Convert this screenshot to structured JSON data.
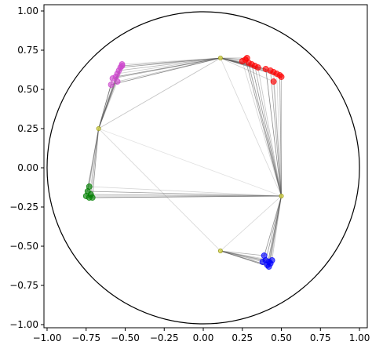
{
  "chart_data": {
    "type": "scatter",
    "xlim": [
      -1.02,
      1.05
    ],
    "ylim": [
      -1.02,
      1.04
    ],
    "xticks": [
      -1.0,
      -0.75,
      -0.5,
      -0.25,
      0.0,
      0.25,
      0.5,
      0.75,
      1.0
    ],
    "yticks": [
      1.0,
      0.75,
      0.5,
      0.25,
      0.0,
      -0.25,
      -0.5,
      -0.75,
      -1.0
    ],
    "xtick_labels": [
      "−1.00",
      "−0.75",
      "−0.50",
      "−0.25",
      "0.00",
      "0.25",
      "0.50",
      "0.75",
      "1.00"
    ],
    "ytick_labels": [
      "1.00",
      "0.75",
      "0.50",
      "0.25",
      "0.00",
      "−0.25",
      "−0.50",
      "−0.75",
      "−1.00"
    ],
    "grid": false,
    "unit_circle_radius": 1.0,
    "hubs": {
      "color": "#d4d44a",
      "points": [
        {
          "x": 0.11,
          "y": 0.7
        },
        {
          "x": -0.67,
          "y": 0.25
        },
        {
          "x": 0.5,
          "y": -0.18
        },
        {
          "x": 0.11,
          "y": -0.53
        }
      ]
    },
    "series": [
      {
        "color": "#ff0000",
        "hub_links": [
          0,
          2
        ],
        "points": [
          {
            "x": 0.25,
            "y": 0.68
          },
          {
            "x": 0.27,
            "y": 0.69
          },
          {
            "x": 0.28,
            "y": 0.7
          },
          {
            "x": 0.29,
            "y": 0.67
          },
          {
            "x": 0.31,
            "y": 0.66
          },
          {
            "x": 0.33,
            "y": 0.65
          },
          {
            "x": 0.35,
            "y": 0.64
          },
          {
            "x": 0.4,
            "y": 0.63
          },
          {
            "x": 0.43,
            "y": 0.62
          },
          {
            "x": 0.45,
            "y": 0.61
          },
          {
            "x": 0.47,
            "y": 0.6
          },
          {
            "x": 0.49,
            "y": 0.59
          },
          {
            "x": 0.5,
            "y": 0.58
          },
          {
            "x": 0.45,
            "y": 0.55
          }
        ]
      },
      {
        "color": "#cc44cc",
        "hub_links": [
          0,
          1
        ],
        "points": [
          {
            "x": -0.52,
            "y": 0.66
          },
          {
            "x": -0.53,
            "y": 0.64
          },
          {
            "x": -0.54,
            "y": 0.62
          },
          {
            "x": -0.55,
            "y": 0.6
          },
          {
            "x": -0.56,
            "y": 0.58
          },
          {
            "x": -0.58,
            "y": 0.57
          },
          {
            "x": -0.55,
            "y": 0.55
          },
          {
            "x": -0.59,
            "y": 0.53
          },
          {
            "x": -0.52,
            "y": 0.65
          }
        ]
      },
      {
        "color": "#008000",
        "hub_links": [
          1,
          2
        ],
        "points": [
          {
            "x": -0.73,
            "y": -0.12
          },
          {
            "x": -0.74,
            "y": -0.15
          },
          {
            "x": -0.75,
            "y": -0.18
          },
          {
            "x": -0.73,
            "y": -0.19
          },
          {
            "x": -0.71,
            "y": -0.19
          },
          {
            "x": -0.72,
            "y": -0.17
          }
        ]
      },
      {
        "color": "#0000ff",
        "hub_links": [
          2,
          3
        ],
        "points": [
          {
            "x": 0.38,
            "y": -0.6
          },
          {
            "x": 0.4,
            "y": -0.59
          },
          {
            "x": 0.42,
            "y": -0.6
          },
          {
            "x": 0.43,
            "y": -0.61
          },
          {
            "x": 0.41,
            "y": -0.62
          },
          {
            "x": 0.39,
            "y": -0.56
          },
          {
            "x": 0.44,
            "y": -0.59
          },
          {
            "x": 0.42,
            "y": -0.63
          }
        ]
      }
    ]
  }
}
